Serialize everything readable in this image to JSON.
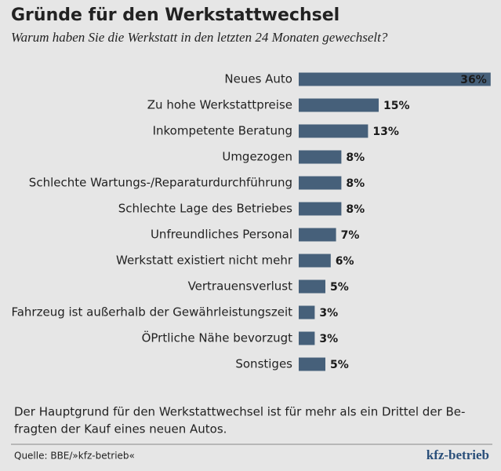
{
  "chart_data": {
    "type": "bar",
    "title": "Gründe für den Werkstattwechsel",
    "subtitle": "Warum haben Sie die Werkstatt in den letzten 24 Monaten gewechselt?",
    "categories": [
      "Neues Auto",
      "Zu hohe Werkstattpreise",
      "Inkompetente Beratung",
      "Umgezogen",
      "Schlechte Wartungs-/Reparaturdurchführung",
      "Schlechte Lage des Betriebes",
      "Unfreundliches Personal",
      "Werkstatt existiert nicht mehr",
      "Vertrauensverlust",
      "Fahrzeug ist außerhalb der Gewährleistungszeit",
      "ÖPrtliche Nähe bevorzugt",
      "Sonstiges"
    ],
    "values": [
      36,
      15,
      13,
      8,
      8,
      8,
      7,
      6,
      5,
      3,
      3,
      5
    ],
    "value_labels": [
      "36%",
      "15%",
      "13%",
      "8%",
      "8%",
      "8%",
      "7%",
      "6%",
      "5%",
      "3%",
      "3%",
      "5%"
    ],
    "color": "#46607a",
    "note": [
      "Der Hauptgrund für den Werkstattwechsel ist für mehr als ein Drittel der Be-",
      "fragten der Kauf eines neuen Autos."
    ],
    "source": "Quelle: BBE/»kfz-betrieb«",
    "logo": "kfz-betrieb"
  }
}
